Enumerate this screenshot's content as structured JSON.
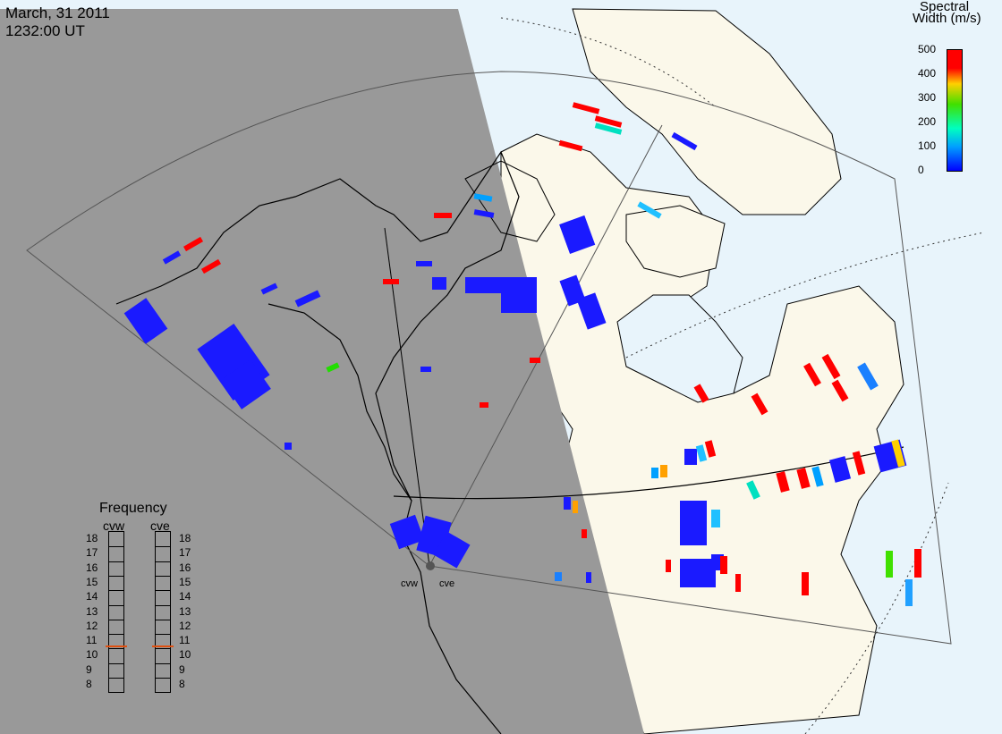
{
  "header": {
    "date": "March, 31 2011",
    "time": "1232:00 UT"
  },
  "color_scale": {
    "title_line1": "Spectral",
    "title_line2": "Width (m/s)",
    "ticks": [
      "500",
      "400",
      "300",
      "200",
      "100",
      "0"
    ],
    "range": [
      0,
      500
    ],
    "colors": [
      "#0000ff",
      "#00a0ff",
      "#00ffc0",
      "#40e000",
      "#ffd000",
      "#ff0000"
    ]
  },
  "frequency_panel": {
    "title": "Frequency",
    "radar_left": "cvw",
    "radar_right": "cve",
    "levels": [
      "18",
      "17",
      "16",
      "15",
      "14",
      "13",
      "12",
      "11",
      "10",
      "9",
      "8"
    ],
    "selected_left": 11,
    "selected_right": 11
  },
  "radars": {
    "west": "cvw",
    "east": "cve"
  },
  "colors": {
    "night": "#999999",
    "day_land": "#fbf8ea",
    "day_ocean": "#e8f4fb",
    "coast": "#000000"
  }
}
